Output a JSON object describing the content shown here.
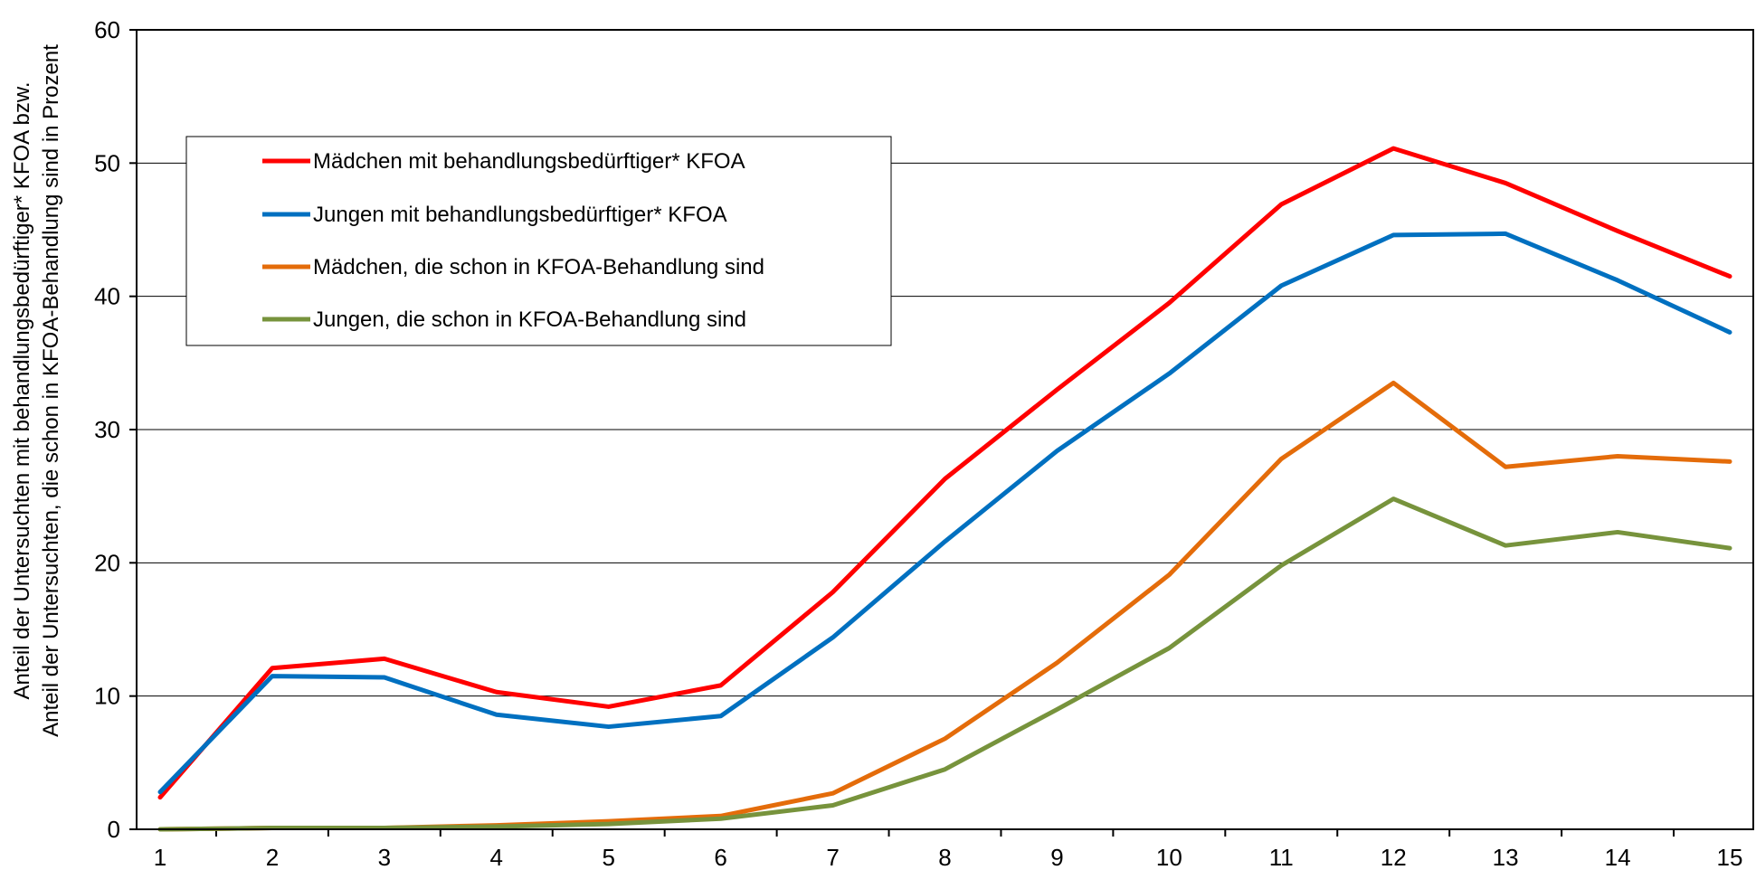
{
  "chart_data": {
    "type": "line",
    "title": "",
    "xlabel": "",
    "ylabel_lines": [
      "Anteil der Untersuchten mit behandlungsbedürftiger* KFOA bzw.",
      "Anteil der Untersuchten, die schon in KFOA-Behandlung sind in Prozent"
    ],
    "x": [
      1,
      2,
      3,
      4,
      5,
      6,
      7,
      8,
      9,
      10,
      11,
      12,
      13,
      14,
      15
    ],
    "x_tick_labels": [
      "1",
      "2",
      "3",
      "4",
      "5",
      "6",
      "7",
      "8",
      "9",
      "10",
      "11",
      "12",
      "13",
      "14",
      "15"
    ],
    "ylim": [
      0,
      60
    ],
    "y_ticks": [
      0,
      10,
      20,
      30,
      40,
      50,
      60
    ],
    "y_tick_labels": [
      "0",
      "10",
      "20",
      "30",
      "40",
      "50",
      "60"
    ],
    "grid": "horizontal",
    "legend_position": "top-left",
    "series": [
      {
        "name": "Mädchen mit behandlungsbedürftiger* KFOA",
        "color": "#ff0000",
        "values": [
          2.4,
          12.1,
          12.8,
          10.3,
          9.2,
          10.8,
          17.8,
          26.3,
          33.0,
          39.5,
          46.9,
          51.1,
          48.5,
          44.9,
          41.5
        ]
      },
      {
        "name": "Jungen mit behandlungsbedürftiger* KFOA",
        "color": "#0070c0",
        "values": [
          2.8,
          11.5,
          11.4,
          8.6,
          7.7,
          8.5,
          14.4,
          21.6,
          28.4,
          34.2,
          40.8,
          44.6,
          44.7,
          41.2,
          37.3
        ]
      },
      {
        "name": "Mädchen, die schon in KFOA-Behandlung sind",
        "color": "#e46c0a",
        "values": [
          0.0,
          0.1,
          0.1,
          0.3,
          0.6,
          1.0,
          2.7,
          6.8,
          12.5,
          19.1,
          27.8,
          33.5,
          27.2,
          28.0,
          27.6
        ]
      },
      {
        "name": "Jungen, die schon in KFOA-Behandlung sind",
        "color": "#77933c",
        "values": [
          0.0,
          0.1,
          0.1,
          0.2,
          0.4,
          0.8,
          1.8,
          4.5,
          9.0,
          13.6,
          19.8,
          24.8,
          21.3,
          22.3,
          21.1
        ]
      }
    ]
  }
}
